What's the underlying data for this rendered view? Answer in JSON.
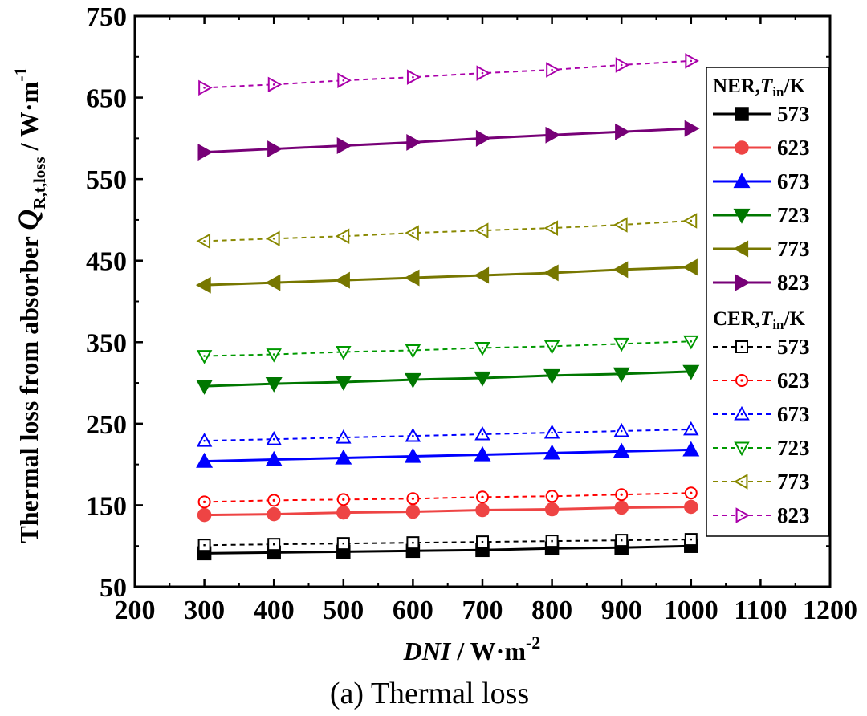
{
  "caption": "(a) Thermal loss",
  "chart_data": {
    "type": "line",
    "title": "",
    "xlabel": {
      "italic": "DNI",
      "rest": " / W·m",
      "sup": "-2"
    },
    "ylabel": {
      "prefix": "Thermal loss from absorber ",
      "italic": "Q",
      "sub": "R,t,loss",
      "rest": " / W·m",
      "sup": "-1"
    },
    "xlim": [
      200,
      1200
    ],
    "ylim": [
      50,
      750
    ],
    "xticks": [
      200,
      300,
      400,
      500,
      600,
      700,
      800,
      900,
      1000,
      1100,
      1200
    ],
    "yticks": [
      50,
      150,
      250,
      350,
      450,
      550,
      650,
      750
    ],
    "grid": false,
    "legend_position": "right",
    "x": [
      300,
      400,
      500,
      600,
      700,
      800,
      900,
      1000
    ],
    "groups": [
      {
        "head": {
          "name": "NER,",
          "var": "T",
          "sub": "in",
          "unit": "/K"
        },
        "line_style": "solid",
        "series": [
          {
            "name": "573",
            "color": "#000000",
            "marker": "square-filled",
            "values": [
              91,
              92,
              93,
              94,
              95,
              97,
              98,
              100
            ]
          },
          {
            "name": "623",
            "color": "#ee4444",
            "marker": "circle-filled",
            "values": [
              138,
              139,
              141,
              142,
              144,
              145,
              147,
              148
            ]
          },
          {
            "name": "673",
            "color": "#0000ff",
            "marker": "triangle-up-filled",
            "values": [
              204,
              206,
              208,
              210,
              212,
              214,
              216,
              218
            ]
          },
          {
            "name": "723",
            "color": "#007700",
            "marker": "triangle-down-filled",
            "values": [
              296,
              299,
              301,
              304,
              306,
              309,
              311,
              314
            ]
          },
          {
            "name": "773",
            "color": "#777700",
            "marker": "triangle-left-filled",
            "values": [
              420,
              423,
              426,
              429,
              432,
              435,
              439,
              442
            ]
          },
          {
            "name": "823",
            "color": "#770077",
            "marker": "triangle-right-filled",
            "values": [
              583,
              587,
              591,
              595,
              600,
              604,
              608,
              612
            ]
          }
        ]
      },
      {
        "head": {
          "name": "CER,",
          "var": "T",
          "sub": "in",
          "unit": "/K"
        },
        "line_style": "dashed",
        "series": [
          {
            "name": "573",
            "color": "#000000",
            "marker": "square-open",
            "values": [
              101,
              102,
              103,
              104,
              105,
              106,
              107,
              108
            ]
          },
          {
            "name": "623",
            "color": "#ff0000",
            "marker": "circle-open",
            "values": [
              154,
              156,
              157,
              158,
              160,
              161,
              163,
              165
            ]
          },
          {
            "name": "673",
            "color": "#0000ff",
            "marker": "triangle-up-open",
            "values": [
              229,
              231,
              233,
              235,
              237,
              239,
              241,
              243
            ]
          },
          {
            "name": "723",
            "color": "#009900",
            "marker": "triangle-down-open",
            "values": [
              333,
              335,
              338,
              340,
              343,
              345,
              348,
              351
            ]
          },
          {
            "name": "773",
            "color": "#888800",
            "marker": "triangle-left-open",
            "values": [
              474,
              477,
              480,
              484,
              487,
              490,
              494,
              499
            ]
          },
          {
            "name": "823",
            "color": "#aa00aa",
            "marker": "triangle-right-open",
            "values": [
              662,
              666,
              671,
              675,
              680,
              684,
              690,
              695
            ]
          }
        ]
      }
    ]
  }
}
